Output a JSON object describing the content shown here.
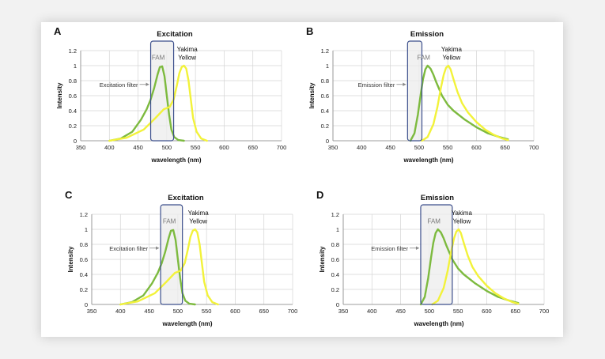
{
  "colors": {
    "fam": "#7dba3f",
    "yakima": "#f2f23a",
    "filter_box": "#3c4f8c",
    "filter_fill": "#ececec",
    "grid": "#d4d4d4"
  },
  "chart_data": [
    {
      "type": "line",
      "panel": "A",
      "title": "Excitation",
      "xlabel": "wavelength (nm)",
      "ylabel": "Intensity",
      "xlim": [
        350,
        700
      ],
      "ylim": [
        0,
        1.2
      ],
      "xticks": [
        350,
        400,
        450,
        500,
        550,
        600,
        650,
        700
      ],
      "yticks": [
        0,
        0.2,
        0.4,
        0.6,
        0.8,
        1,
        1.2
      ],
      "grid": true,
      "filter": {
        "label": "Excitation filter",
        "range": [
          472,
          512
        ]
      },
      "annotations": {
        "fam": "FAM",
        "yakima_line1": "Yakima",
        "yakima_line2": "Yellow"
      },
      "series": [
        {
          "name": "FAM",
          "x": [
            400,
            420,
            440,
            455,
            465,
            472,
            478,
            484,
            488,
            492,
            496,
            500,
            504,
            508,
            513,
            520,
            530
          ],
          "y": [
            0,
            0.03,
            0.12,
            0.28,
            0.42,
            0.55,
            0.7,
            0.88,
            0.98,
            0.99,
            0.86,
            0.6,
            0.35,
            0.15,
            0.05,
            0.01,
            0
          ]
        },
        {
          "name": "Yakima Yellow",
          "x": [
            400,
            430,
            460,
            480,
            495,
            505,
            512,
            518,
            522,
            526,
            530,
            534,
            538,
            542,
            546,
            552,
            560,
            570
          ],
          "y": [
            0,
            0.04,
            0.15,
            0.3,
            0.42,
            0.45,
            0.55,
            0.75,
            0.9,
            0.98,
            1,
            0.96,
            0.8,
            0.55,
            0.3,
            0.12,
            0.03,
            0
          ]
        }
      ]
    },
    {
      "type": "line",
      "panel": "B",
      "title": "Emission",
      "xlabel": "wavelength (nm)",
      "ylabel": "Intensity",
      "xlim": [
        350,
        700
      ],
      "ylim": [
        0,
        1.2
      ],
      "xticks": [
        350,
        400,
        450,
        500,
        550,
        600,
        650,
        700
      ],
      "yticks": [
        0,
        0.2,
        0.4,
        0.6,
        0.8,
        1,
        1.2
      ],
      "grid": true,
      "filter": {
        "label": "Emission filter",
        "range": [
          480,
          505
        ]
      },
      "annotations": {
        "fam": "FAM",
        "yakima_line1": "Yakima",
        "yakima_line2": "Yellow"
      },
      "series": [
        {
          "name": "FAM",
          "x": [
            485,
            492,
            498,
            503,
            507,
            511,
            515,
            520,
            525,
            530,
            540,
            550,
            560,
            580,
            600,
            620,
            640,
            655
          ],
          "y": [
            0,
            0.1,
            0.35,
            0.62,
            0.82,
            0.95,
            1,
            0.96,
            0.88,
            0.78,
            0.6,
            0.48,
            0.4,
            0.28,
            0.18,
            0.1,
            0.05,
            0.02
          ]
        },
        {
          "name": "Yakima Yellow",
          "x": [
            505,
            515,
            525,
            532,
            538,
            543,
            547,
            551,
            555,
            560,
            567,
            575,
            585,
            600,
            615,
            630,
            645,
            655
          ],
          "y": [
            0,
            0.05,
            0.22,
            0.45,
            0.7,
            0.88,
            0.97,
            1,
            0.95,
            0.82,
            0.65,
            0.5,
            0.38,
            0.25,
            0.15,
            0.08,
            0.03,
            0.01
          ]
        }
      ]
    },
    {
      "type": "line",
      "panel": "C",
      "title": "Excitation",
      "xlabel": "wavelength (nm)",
      "ylabel": "Intensity",
      "xlim": [
        350,
        700
      ],
      "ylim": [
        0,
        1.2
      ],
      "xticks": [
        350,
        400,
        450,
        500,
        550,
        600,
        650,
        700
      ],
      "yticks": [
        0,
        0.2,
        0.4,
        0.6,
        0.8,
        1,
        1.2
      ],
      "grid": true,
      "filter": {
        "label": "Excitation filter",
        "range": [
          470,
          508
        ]
      },
      "annotations": {
        "fam": "FAM",
        "yakima_line1": "Yakima",
        "yakima_line2": "Yellow"
      },
      "series": [
        {
          "name": "FAM",
          "x": [
            400,
            420,
            440,
            455,
            465,
            472,
            478,
            484,
            488,
            492,
            496,
            500,
            504,
            508,
            513,
            520,
            530
          ],
          "y": [
            0,
            0.03,
            0.12,
            0.28,
            0.42,
            0.55,
            0.7,
            0.88,
            0.98,
            0.99,
            0.86,
            0.6,
            0.35,
            0.15,
            0.05,
            0.01,
            0
          ]
        },
        {
          "name": "Yakima Yellow",
          "x": [
            400,
            430,
            460,
            480,
            495,
            505,
            512,
            518,
            522,
            526,
            530,
            534,
            538,
            542,
            546,
            552,
            560,
            570
          ],
          "y": [
            0,
            0.04,
            0.15,
            0.3,
            0.42,
            0.45,
            0.55,
            0.75,
            0.9,
            0.98,
            1,
            0.96,
            0.8,
            0.55,
            0.3,
            0.12,
            0.03,
            0
          ]
        }
      ]
    },
    {
      "type": "line",
      "panel": "D",
      "title": "Emission",
      "xlabel": "wavelength (nm)",
      "ylabel": "Intensity",
      "xlim": [
        350,
        700
      ],
      "ylim": [
        0,
        1.2
      ],
      "xticks": [
        350,
        400,
        450,
        500,
        550,
        600,
        650,
        700
      ],
      "yticks": [
        0,
        0.2,
        0.4,
        0.6,
        0.8,
        1,
        1.2
      ],
      "grid": true,
      "filter": {
        "label": "Emission filter",
        "range": [
          485,
          540
        ]
      },
      "annotations": {
        "fam": "FAM",
        "yakima_line1": "Yakima",
        "yakima_line2": "Yellow"
      },
      "series": [
        {
          "name": "FAM",
          "x": [
            485,
            492,
            498,
            503,
            507,
            511,
            515,
            520,
            525,
            530,
            540,
            550,
            560,
            580,
            600,
            620,
            640,
            655
          ],
          "y": [
            0,
            0.1,
            0.35,
            0.62,
            0.82,
            0.95,
            1,
            0.96,
            0.88,
            0.78,
            0.6,
            0.48,
            0.4,
            0.28,
            0.18,
            0.1,
            0.05,
            0.02
          ]
        },
        {
          "name": "Yakima Yellow",
          "x": [
            505,
            515,
            525,
            532,
            538,
            543,
            547,
            551,
            555,
            560,
            567,
            575,
            585,
            600,
            615,
            630,
            645,
            655
          ],
          "y": [
            0,
            0.05,
            0.22,
            0.45,
            0.7,
            0.88,
            0.97,
            1,
            0.95,
            0.82,
            0.65,
            0.5,
            0.38,
            0.25,
            0.15,
            0.08,
            0.03,
            0.01
          ]
        }
      ]
    }
  ]
}
